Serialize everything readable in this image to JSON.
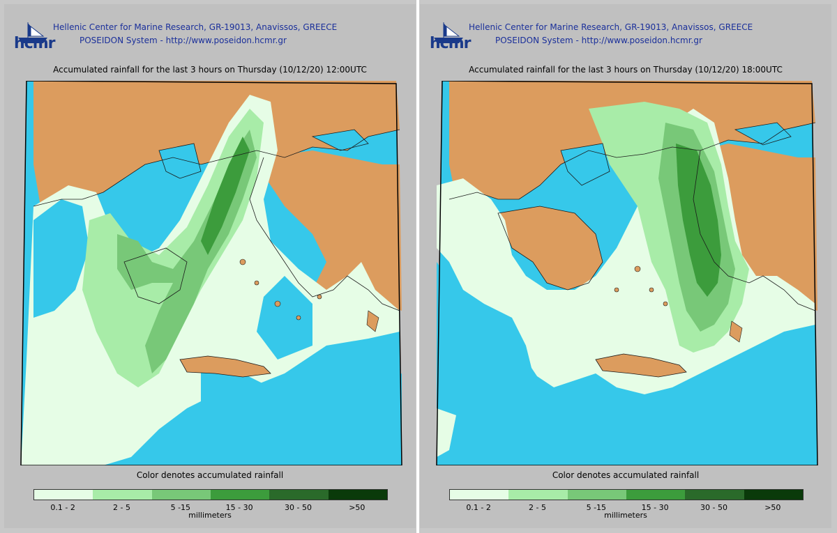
{
  "header": {
    "logo_text": "hcmr",
    "line1": "Hellenic Center for Marine Research, GR-19013, Anavissos, GREECE",
    "line2": "POSEIDON System - http://www.poseidon.hcmr.gr"
  },
  "panels": [
    {
      "title": "Accumulated rainfall for the last 3 hours on Thursday (10/12/20) 12:00UTC"
    },
    {
      "title": "Accumulated rainfall for the last 3 hours on Thursday (10/12/20) 18:00UTC"
    }
  ],
  "legend": {
    "title": "Color denotes accumulated rainfall",
    "unit": "millimeters",
    "classes": [
      {
        "label": "0.1 - 2",
        "color": "#e6fde6"
      },
      {
        "label": "2 - 5",
        "color": "#a8eca8"
      },
      {
        "label": "5 -15",
        "color": "#78c878"
      },
      {
        "label": "15 - 30",
        "color": "#3c9c3c"
      },
      {
        "label": "30 - 50",
        "color": "#2a6a2a"
      },
      {
        "label": ">50",
        "color": "#0a3a0a"
      }
    ]
  },
  "colors": {
    "sea": "#36c8ea",
    "land": "#dc9c5e",
    "coast": "#1a1a1a",
    "header_text": "#1a2f9a"
  }
}
